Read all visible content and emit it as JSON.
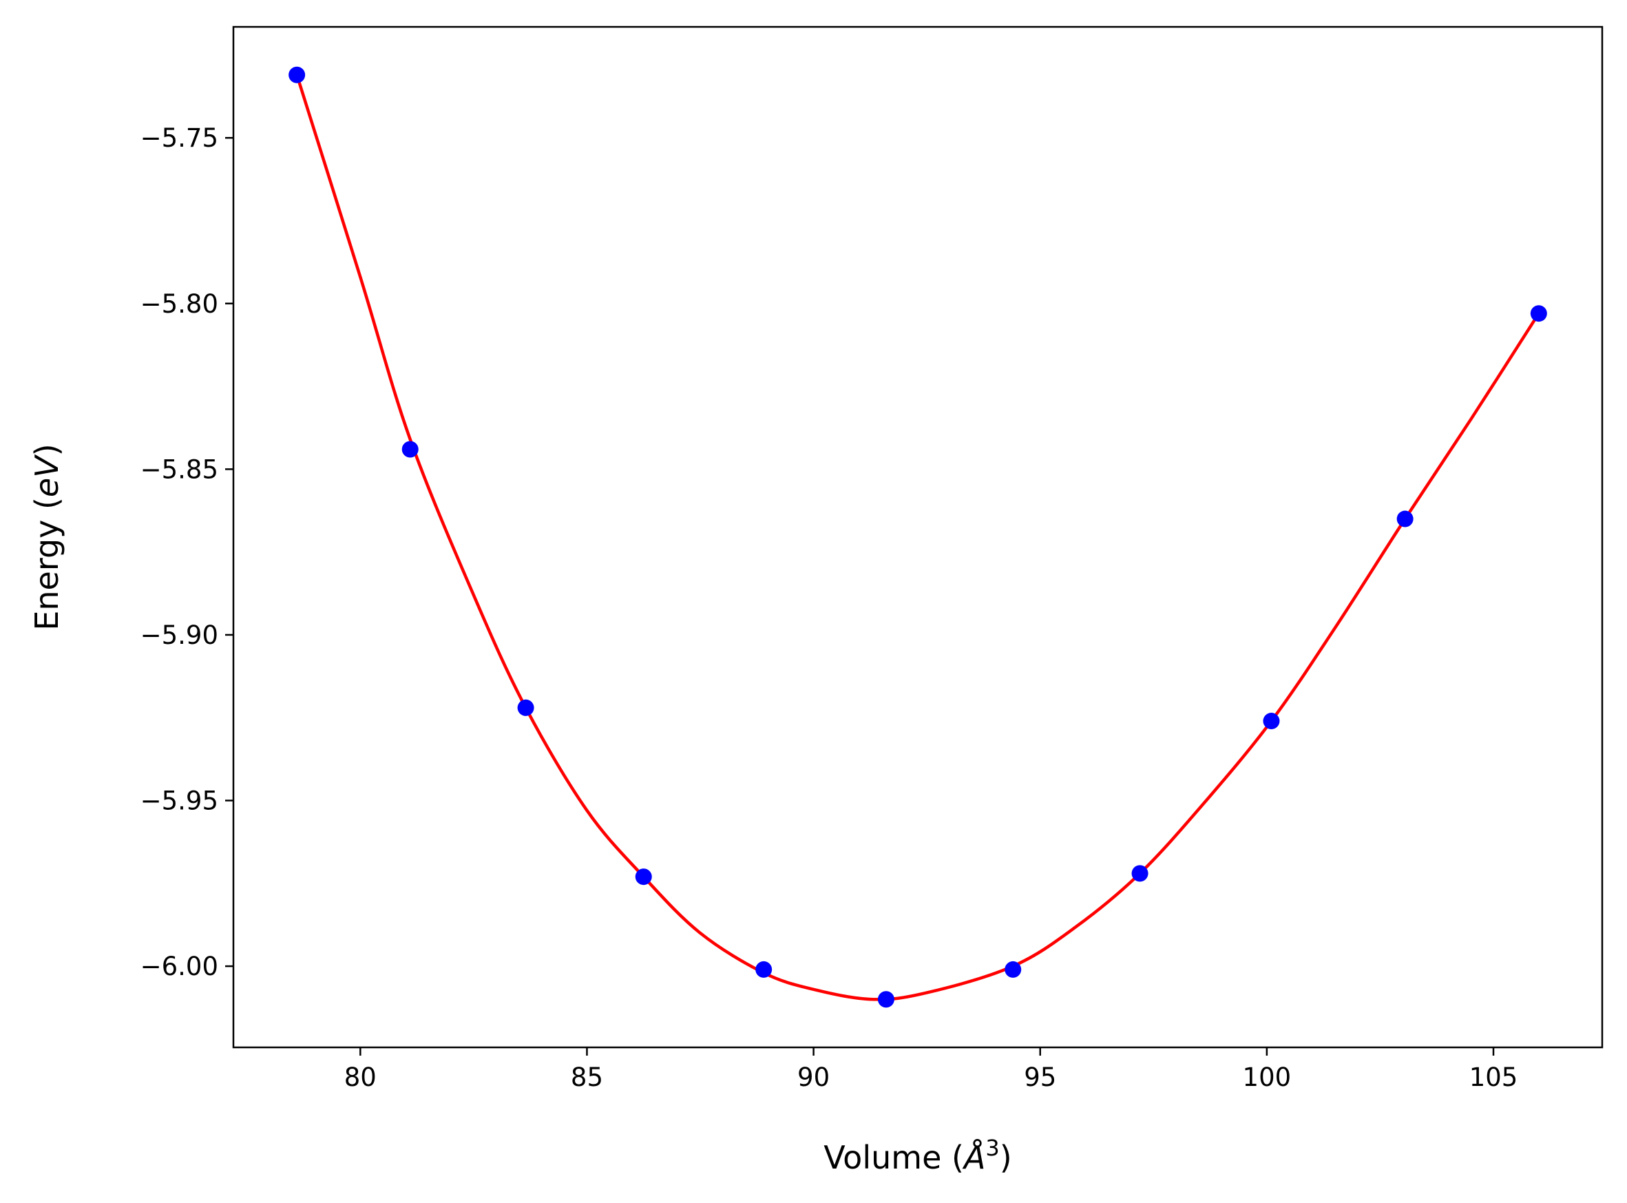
{
  "chart_data": {
    "type": "scatter",
    "title": "",
    "xlabel": "Volume (Å³)",
    "xlabel_parts": {
      "prefix": "Volume (",
      "symbol": "Å",
      "superscript": "3",
      "suffix": ")"
    },
    "ylabel": "Energy (eV)",
    "ylabel_parts": {
      "prefix": "Energy (",
      "italic": "eV",
      "suffix": ")"
    },
    "xlim": [
      77.2,
      107.4
    ],
    "ylim": [
      -6.0245,
      -5.7165
    ],
    "grid": false,
    "legend": null,
    "x_ticks": [
      {
        "value": 80,
        "label": "80"
      },
      {
        "value": 85,
        "label": "85"
      },
      {
        "value": 90,
        "label": "90"
      },
      {
        "value": 95,
        "label": "95"
      },
      {
        "value": 100,
        "label": "100"
      },
      {
        "value": 105,
        "label": "105"
      }
    ],
    "y_ticks": [
      {
        "value": -5.75,
        "label": "−5.75"
      },
      {
        "value": -5.8,
        "label": "−5.80"
      },
      {
        "value": -5.85,
        "label": "−5.85"
      },
      {
        "value": -5.9,
        "label": "−5.90"
      },
      {
        "value": -5.95,
        "label": "−5.95"
      },
      {
        "value": -6.0,
        "label": "−6.00"
      }
    ],
    "series": [
      {
        "kind": "points",
        "color": "#0000ff",
        "x": [
          78.6,
          81.1,
          83.65,
          86.25,
          88.9,
          91.6,
          94.4,
          97.2,
          100.1,
          103.05,
          106.0
        ],
        "y": [
          -5.731,
          -5.844,
          -5.922,
          -5.973,
          -6.001,
          -6.01,
          -6.001,
          -5.972,
          -5.926,
          -5.865,
          -5.803
        ]
      },
      {
        "kind": "fit-curve",
        "color": "#ff0000",
        "x": [
          78.6,
          80.0,
          81.1,
          82.5,
          83.65,
          85.0,
          86.25,
          87.5,
          88.9,
          90.0,
          91.3,
          92.5,
          94.4,
          95.8,
          97.2,
          98.6,
          100.1,
          101.5,
          103.05,
          104.5,
          106.0
        ],
        "y": [
          -5.731,
          -5.792,
          -5.841,
          -5.888,
          -5.922,
          -5.953,
          -5.973,
          -5.99,
          -6.002,
          -6.007,
          -6.01,
          -6.008,
          -6.0,
          -5.988,
          -5.972,
          -5.951,
          -5.926,
          -5.898,
          -5.865,
          -5.835,
          -5.803
        ]
      }
    ]
  }
}
